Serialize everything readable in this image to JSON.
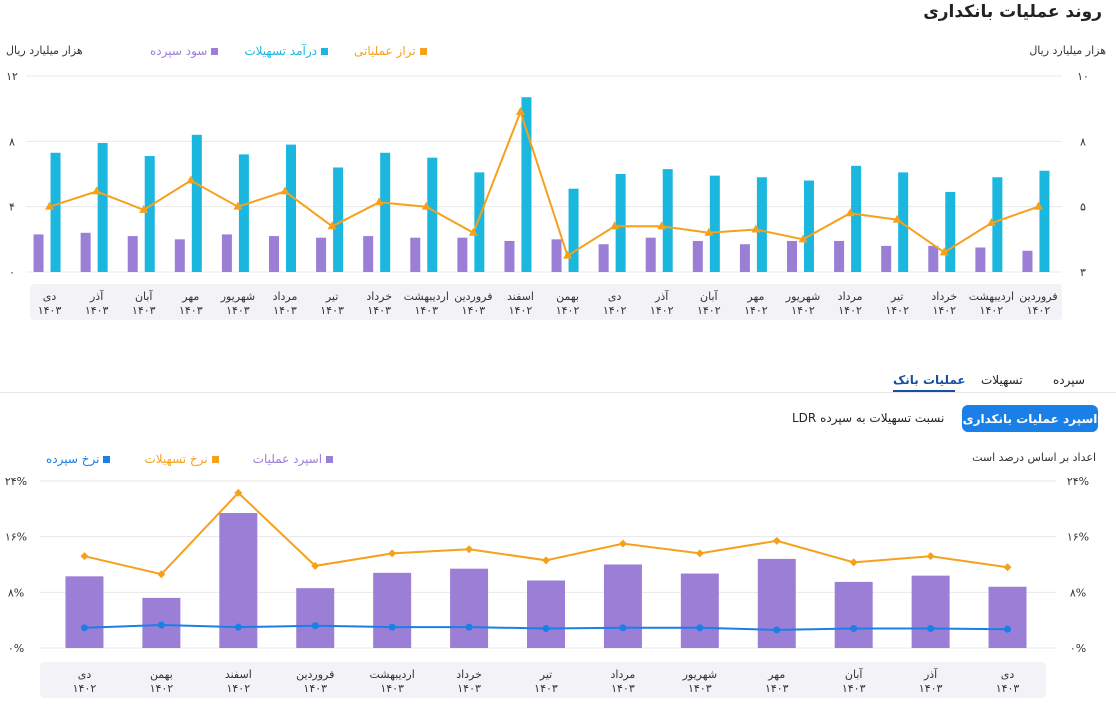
{
  "page": {
    "title": "روند عملیات بانکداری"
  },
  "colors": {
    "purple": "#9b7fd6",
    "cyan": "#1cb7df",
    "orange": "#f5a11c",
    "blue": "#1a7fe6",
    "axis_bg": "#f2f2f7"
  },
  "chart1": {
    "left_unit": "هزار میلیارد ریال",
    "right_unit": "هزار میلیارد ریال",
    "legend": [
      "سود سپرده",
      "درآمد تسهیلات",
      "تراز عملیاتی"
    ],
    "left_ticks": [
      "۰",
      "۴",
      "۸",
      "۱۲"
    ],
    "right_ticks": [
      "۳",
      "۵",
      "۸",
      "۱۰"
    ]
  },
  "tabs": {
    "items": [
      "سپرده",
      "تسهیلات",
      "عملیات بانک"
    ],
    "active_index": 2
  },
  "subtabs": {
    "active": "اسپرد عملیات بانکداری",
    "other": "نسبت تسهیلات به سپرده LDR"
  },
  "chart2": {
    "note": "اعداد بر اساس درصد است",
    "legend": [
      "اسپرد عملیات",
      "نرخ تسهیلات",
      "نرخ سپرده"
    ],
    "ticks": [
      "۰%",
      "۸%",
      "۱۶%",
      "۲۴%"
    ]
  },
  "chart_data": [
    {
      "type": "bar",
      "title": "روند عملیات بانکداری",
      "ylabel": "هزار میلیارد ریال",
      "ylabel_right": "هزار میلیارد ریال",
      "ylim": [
        0,
        12
      ],
      "ylim_right": [
        3,
        10
      ],
      "right_axis_ticks": [
        3,
        5,
        8,
        10
      ],
      "categories": [
        [
          "فروردین",
          "۱۴۰۲"
        ],
        [
          "اردیبهشت",
          "۱۴۰۲"
        ],
        [
          "خرداد",
          "۱۴۰۲"
        ],
        [
          "تیر",
          "۱۴۰۲"
        ],
        [
          "مرداد",
          "۱۴۰۲"
        ],
        [
          "شهریور",
          "۱۴۰۲"
        ],
        [
          "مهر",
          "۱۴۰۲"
        ],
        [
          "آبان",
          "۱۴۰۲"
        ],
        [
          "آذر",
          "۱۴۰۲"
        ],
        [
          "دی",
          "۱۴۰۲"
        ],
        [
          "بهمن",
          "۱۴۰۲"
        ],
        [
          "اسفند",
          "۱۴۰۲"
        ],
        [
          "فروردین",
          "۱۴۰۳"
        ],
        [
          "اردیبهشت",
          "۱۴۰۳"
        ],
        [
          "خرداد",
          "۱۴۰۳"
        ],
        [
          "تیر",
          "۱۴۰۳"
        ],
        [
          "مرداد",
          "۱۴۰۳"
        ],
        [
          "شهریور",
          "۱۴۰۳"
        ],
        [
          "مهر",
          "۱۴۰۳"
        ],
        [
          "آبان",
          "۱۴۰۳"
        ],
        [
          "آذر",
          "۱۴۰۳"
        ],
        [
          "دی",
          "۱۴۰۳"
        ]
      ],
      "series": [
        {
          "name": "سود سپرده",
          "axis": "left",
          "kind": "bar",
          "values": [
            1.3,
            1.5,
            1.6,
            1.6,
            1.9,
            1.9,
            1.7,
            1.9,
            2.1,
            1.7,
            2.0,
            1.9,
            2.1,
            2.1,
            2.2,
            2.1,
            2.2,
            2.3,
            2.0,
            2.2,
            2.4,
            2.3
          ]
        },
        {
          "name": "درآمد تسهیلات",
          "axis": "left",
          "kind": "bar",
          "values": [
            6.2,
            5.8,
            4.9,
            6.1,
            6.5,
            5.6,
            5.8,
            5.9,
            6.3,
            6.0,
            5.1,
            10.7,
            6.1,
            7.0,
            7.3,
            6.4,
            7.8,
            7.2,
            8.4,
            7.1,
            7.9,
            7.3
          ]
        },
        {
          "name": "تراز عملیاتی",
          "axis": "right",
          "kind": "line",
          "values": [
            5.0,
            4.5,
            3.6,
            4.6,
            4.8,
            4.0,
            4.3,
            4.2,
            4.4,
            4.4,
            3.5,
            8.9,
            4.2,
            5.0,
            5.2,
            4.4,
            5.7,
            5.0,
            6.2,
            4.9,
            5.7,
            5.0
          ]
        }
      ],
      "grid": true,
      "legend_position": "top"
    },
    {
      "type": "bar",
      "title": "اسپرد عملیات بانکداری",
      "ylabel": "اعداد بر اساس درصد است",
      "ylim": [
        0,
        24
      ],
      "y_ticks": [
        "0%",
        "8%",
        "16%",
        "24%"
      ],
      "categories": [
        [
          "دی",
          "۱۴۰۲"
        ],
        [
          "بهمن",
          "۱۴۰۲"
        ],
        [
          "اسفند",
          "۱۴۰۲"
        ],
        [
          "فروردین",
          "۱۴۰۳"
        ],
        [
          "اردیبهشت",
          "۱۴۰۳"
        ],
        [
          "خرداد",
          "۱۴۰۳"
        ],
        [
          "تیر",
          "۱۴۰۳"
        ],
        [
          "مرداد",
          "۱۴۰۳"
        ],
        [
          "شهریور",
          "۱۴۰۳"
        ],
        [
          "مهر",
          "۱۴۰۳"
        ],
        [
          "آبان",
          "۱۴۰۳"
        ],
        [
          "آذر",
          "۱۴۰۳"
        ],
        [
          "دی",
          "۱۴۰۳"
        ]
      ],
      "series": [
        {
          "name": "اسپرد عملیات",
          "kind": "bar",
          "values": [
            10.3,
            7.2,
            19.4,
            8.6,
            10.8,
            11.4,
            9.7,
            12.0,
            10.7,
            12.8,
            9.5,
            10.4,
            8.8
          ]
        },
        {
          "name": "نرخ تسهیلات",
          "kind": "line",
          "values": [
            13.2,
            10.6,
            22.3,
            11.8,
            13.6,
            14.2,
            12.6,
            15.0,
            13.6,
            15.4,
            12.3,
            13.2,
            11.6
          ]
        },
        {
          "name": "نرخ سپرده",
          "kind": "line",
          "values": [
            2.9,
            3.3,
            3.0,
            3.2,
            3.0,
            3.0,
            2.8,
            2.9,
            2.9,
            2.6,
            2.8,
            2.8,
            2.7
          ]
        }
      ],
      "grid": true,
      "legend_position": "top"
    }
  ]
}
